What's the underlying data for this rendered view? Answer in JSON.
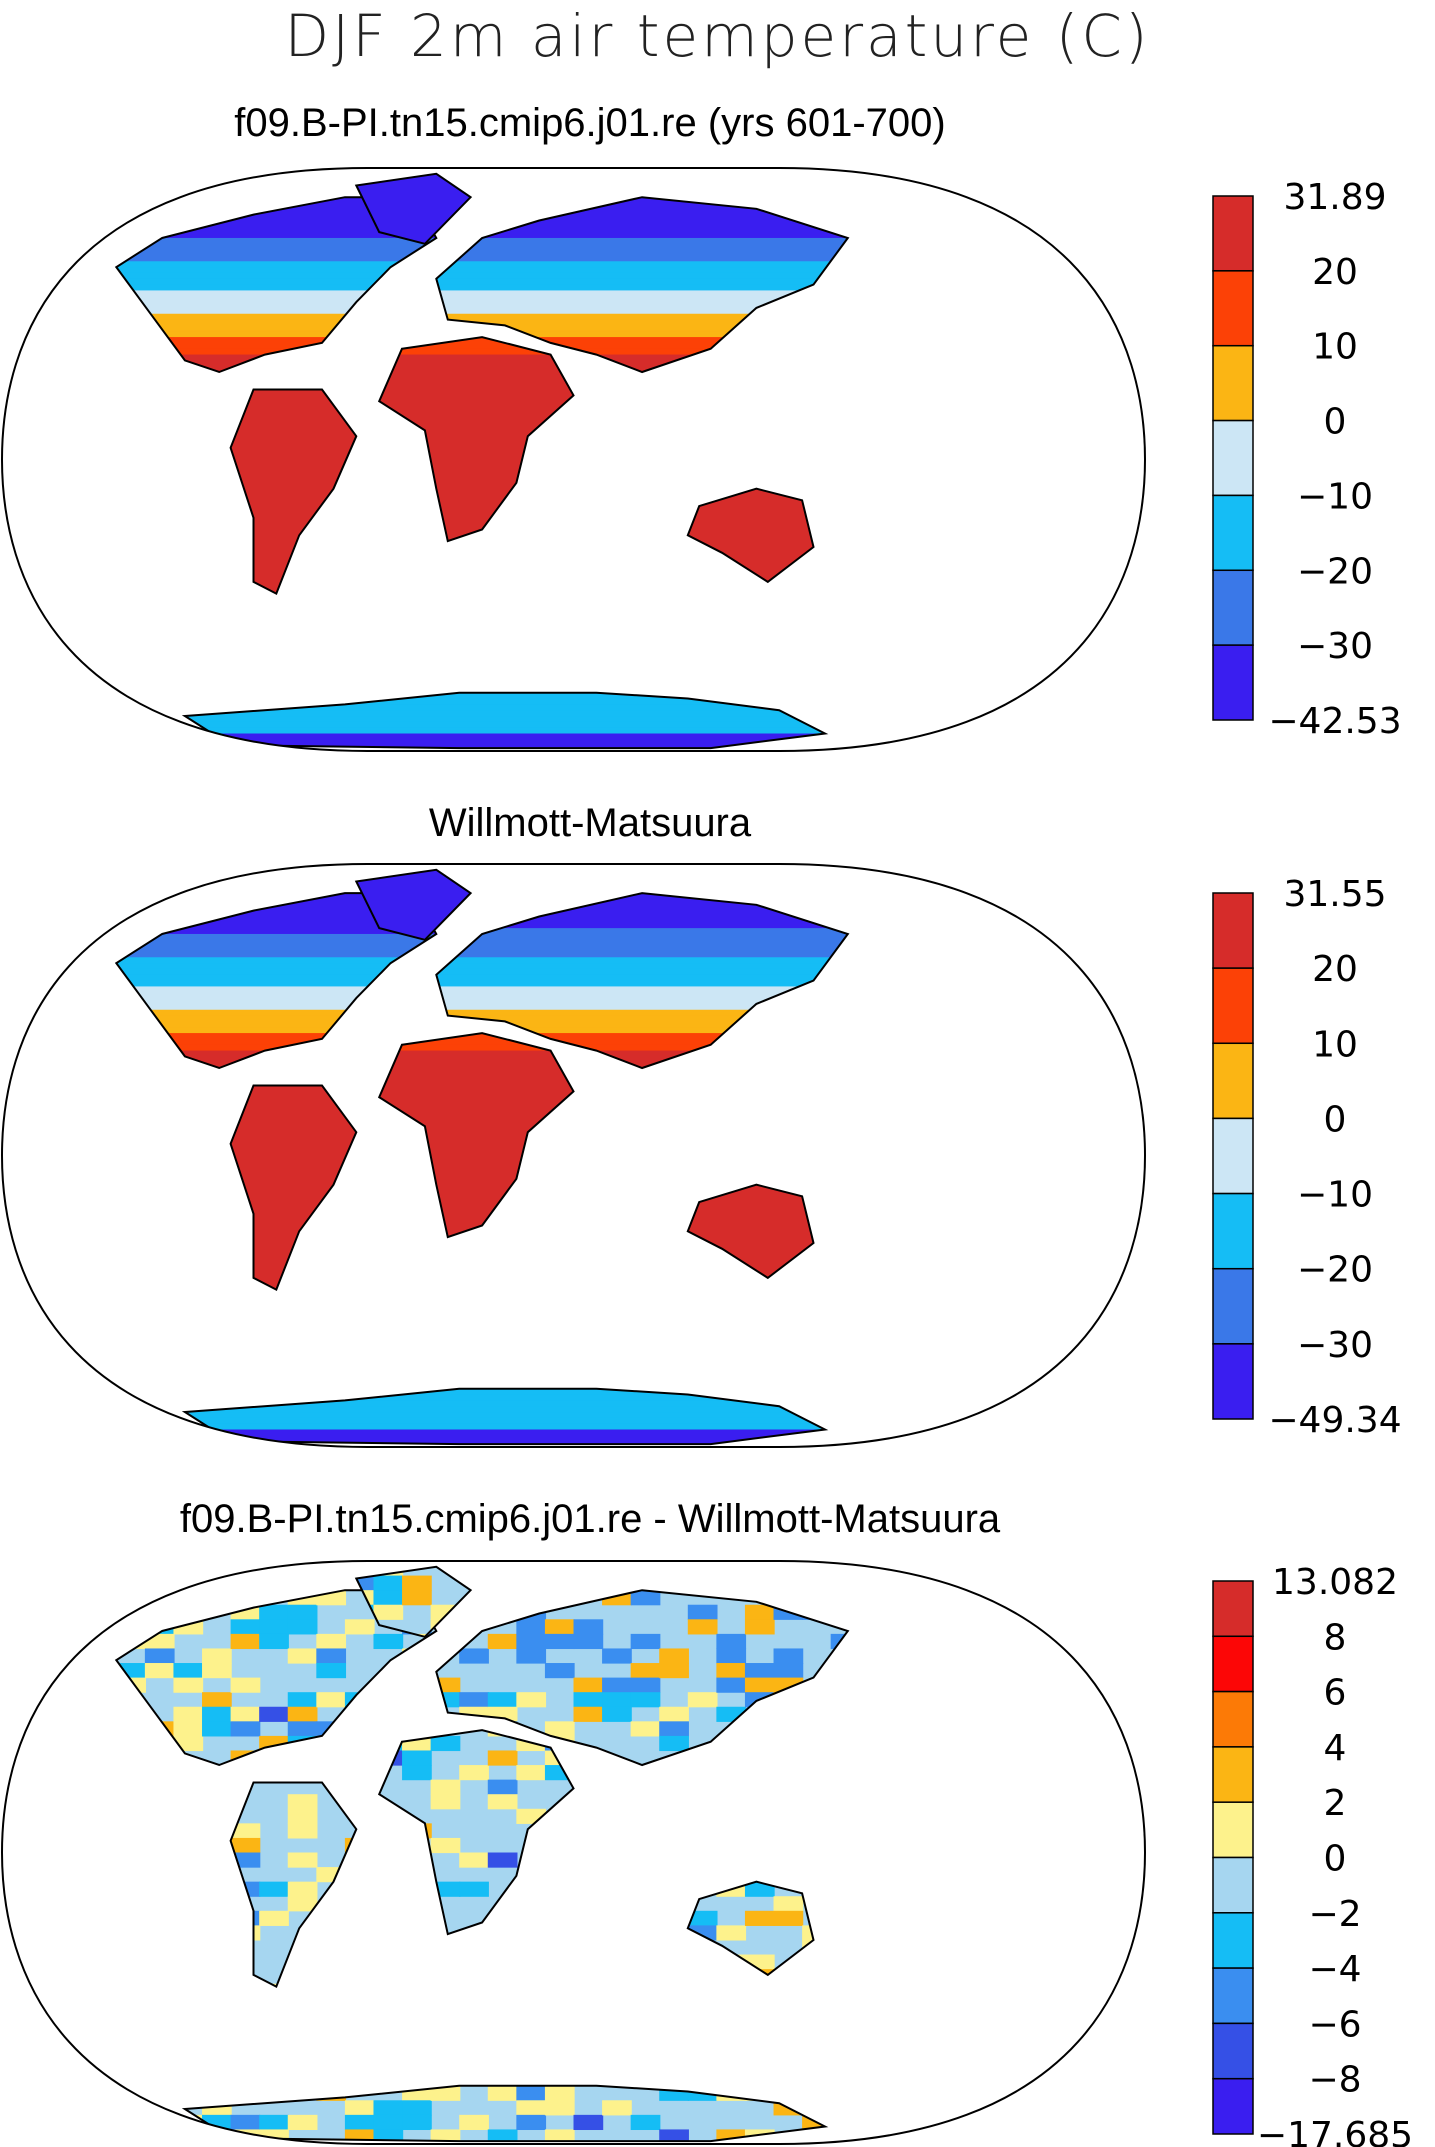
{
  "title": "DJF 2m air temperature (C)",
  "colors": {
    "temp": [
      "#3a1ef0",
      "#3a78e8",
      "#15bdf5",
      "#cce6f5",
      "#fbb514",
      "#fc4106",
      "#d62c2a"
    ],
    "diff": [
      "#3a1ef0",
      "#3550e6",
      "#3a8ef0",
      "#15bdf5",
      "#a6d6f0",
      "#fdf28c",
      "#fbb514",
      "#fc7a06",
      "#fc0606",
      "#d62c2a"
    ]
  },
  "panels": [
    {
      "title": "f09.B-PI.tn15.cmip6.j01.re (yrs 601-700)",
      "colorbar": [
        "31.89",
        "20",
        "10",
        "0",
        "−10",
        "−20",
        "−30",
        "−42.53"
      ]
    },
    {
      "title": "Willmott-Matsuura",
      "colorbar": [
        "31.55",
        "20",
        "10",
        "0",
        "−10",
        "−20",
        "−30",
        "−49.34"
      ]
    },
    {
      "title": "f09.B-PI.tn15.cmip6.j01.re - Willmott-Matsuura",
      "colorbar": [
        "13.082",
        "8",
        "6",
        "4",
        "2",
        "0",
        "−2",
        "−4",
        "−6",
        "−8",
        "−17.685"
      ]
    }
  ],
  "chart_data": [
    {
      "type": "heatmap",
      "title": "f09.B-PI.tn15.cmip6.j01.re (yrs 601-700)",
      "colorbar_levels": [
        -42.53,
        -30,
        -20,
        -10,
        0,
        10,
        20,
        31.89
      ]
    },
    {
      "type": "heatmap",
      "title": "Willmott-Matsuura",
      "colorbar_levels": [
        -49.34,
        -30,
        -20,
        -10,
        0,
        10,
        20,
        31.55
      ]
    },
    {
      "type": "heatmap",
      "title": "f09.B-PI.tn15.cmip6.j01.re - Willmott-Matsuura",
      "colorbar_levels": [
        -17.685,
        -8,
        -6,
        -4,
        -2,
        0,
        2,
        4,
        6,
        8,
        13.082
      ]
    }
  ]
}
